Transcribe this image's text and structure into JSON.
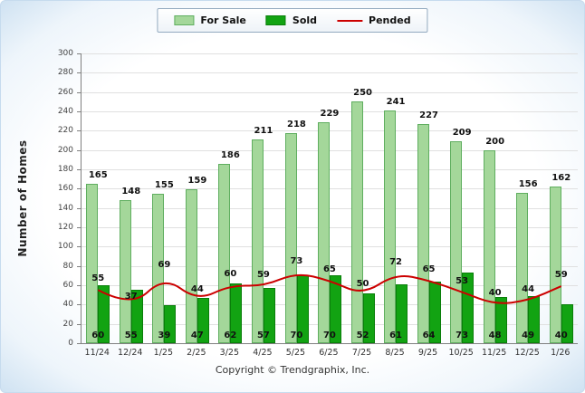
{
  "chart_data": {
    "type": "bar",
    "title": "",
    "categories": [
      "11/24",
      "12/24",
      "1/25",
      "2/25",
      "3/25",
      "4/25",
      "5/25",
      "6/25",
      "7/25",
      "8/25",
      "9/25",
      "10/25",
      "11/25",
      "12/25",
      "1/26"
    ],
    "series": [
      {
        "name": "For Sale",
        "type": "bar",
        "color": "#A4D79A",
        "border": "#5FAE5F",
        "values": [
          165,
          148,
          155,
          159,
          186,
          211,
          218,
          229,
          250,
          241,
          227,
          209,
          200,
          156,
          162
        ]
      },
      {
        "name": "Sold",
        "type": "bar",
        "color": "#12A312",
        "border": "#0A7E0A",
        "values": [
          60,
          55,
          39,
          47,
          62,
          57,
          70,
          70,
          52,
          61,
          64,
          73,
          48,
          49,
          40
        ]
      },
      {
        "name": "Pended",
        "type": "line",
        "color": "#CC0000",
        "values": [
          55,
          37,
          69,
          44,
          60,
          59,
          73,
          65,
          50,
          72,
          65,
          53,
          40,
          44,
          59
        ]
      }
    ],
    "xlabel": "",
    "ylabel": "Number of Homes",
    "ylim": [
      0,
      300
    ],
    "ytick_step": 20,
    "grid": true,
    "legend_position": "top",
    "colors": {
      "label": "#111111",
      "grid": "#e0e0e0",
      "axis": "#808080"
    }
  },
  "footer": {
    "copyright": "Copyright © Trendgraphix, Inc."
  }
}
